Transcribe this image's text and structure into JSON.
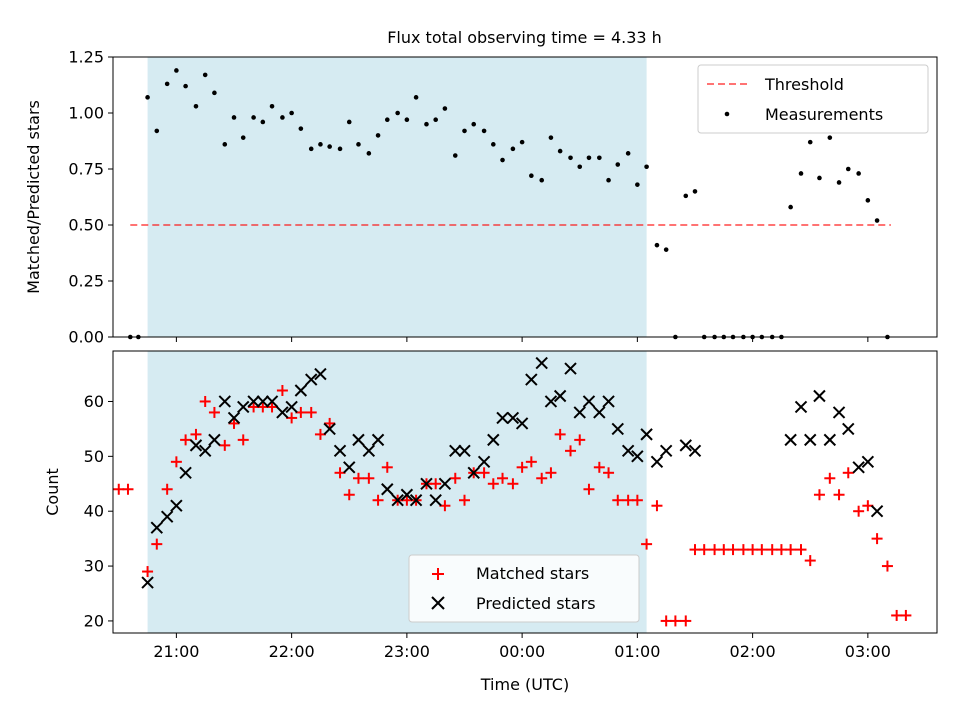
{
  "figure_title": "Flux total observing time = 4.33 h",
  "colors": {
    "shade": "#add8e6",
    "threshold": "#ff0000",
    "matched": "#ff0000",
    "predicted": "#000000",
    "measure": "#000000"
  },
  "chart_data": [
    {
      "type": "scatter",
      "title": "Flux total observing time = 4.33 h",
      "xlabel": "",
      "ylabel": "Matched/Predicted stars",
      "x_axis": "time (UTC, day-relative hours; 24 = 00:00 next day)",
      "xlim": [
        20.45,
        27.6
      ],
      "ylim": [
        0,
        1.25
      ],
      "yticks": [
        0,
        0.25,
        0.5,
        0.75,
        1.0,
        1.25
      ],
      "ytick_labels": [
        "0.00",
        "0.25",
        "0.50",
        "0.75",
        "1.00",
        "1.25"
      ],
      "grid": false,
      "legend_position": "top-right",
      "shaded_region": {
        "x": [
          20.75,
          25.08
        ]
      },
      "threshold": {
        "name": "Threshold",
        "y": 0.5,
        "x": [
          20.6,
          27.2
        ]
      },
      "series": [
        {
          "name": "Measurements",
          "points": [
            [
              20.6,
              0.0
            ],
            [
              20.67,
              0.0
            ],
            [
              20.75,
              1.07
            ],
            [
              20.83,
              0.92
            ],
            [
              20.92,
              1.13
            ],
            [
              21.0,
              1.19
            ],
            [
              21.08,
              1.12
            ],
            [
              21.17,
              1.03
            ],
            [
              21.25,
              1.17
            ],
            [
              21.33,
              1.09
            ],
            [
              21.42,
              0.86
            ],
            [
              21.5,
              0.98
            ],
            [
              21.58,
              0.89
            ],
            [
              21.67,
              0.98
            ],
            [
              21.75,
              0.96
            ],
            [
              21.83,
              1.03
            ],
            [
              21.92,
              0.98
            ],
            [
              22.0,
              1.0
            ],
            [
              22.08,
              0.93
            ],
            [
              22.17,
              0.84
            ],
            [
              22.25,
              0.86
            ],
            [
              22.33,
              0.85
            ],
            [
              22.42,
              0.84
            ],
            [
              22.5,
              0.96
            ],
            [
              22.58,
              0.86
            ],
            [
              22.67,
              0.82
            ],
            [
              22.75,
              0.9
            ],
            [
              22.83,
              0.97
            ],
            [
              22.92,
              1.0
            ],
            [
              23.0,
              0.97
            ],
            [
              23.08,
              1.07
            ],
            [
              23.17,
              0.95
            ],
            [
              23.25,
              0.97
            ],
            [
              23.33,
              1.02
            ],
            [
              23.42,
              0.81
            ],
            [
              23.5,
              0.92
            ],
            [
              23.58,
              0.95
            ],
            [
              23.67,
              0.92
            ],
            [
              23.75,
              0.86
            ],
            [
              23.83,
              0.79
            ],
            [
              23.92,
              0.84
            ],
            [
              24.0,
              0.87
            ],
            [
              24.08,
              0.72
            ],
            [
              24.17,
              0.7
            ],
            [
              24.25,
              0.89
            ],
            [
              24.33,
              0.83
            ],
            [
              24.42,
              0.8
            ],
            [
              24.5,
              0.76
            ],
            [
              24.58,
              0.8
            ],
            [
              24.67,
              0.8
            ],
            [
              24.75,
              0.7
            ],
            [
              24.83,
              0.77
            ],
            [
              24.92,
              0.82
            ],
            [
              25.0,
              0.68
            ],
            [
              25.08,
              0.76
            ],
            [
              25.17,
              0.41
            ],
            [
              25.25,
              0.39
            ],
            [
              25.33,
              0.0
            ],
            [
              25.42,
              0.63
            ],
            [
              25.5,
              0.65
            ],
            [
              25.58,
              0.0
            ],
            [
              25.67,
              0.0
            ],
            [
              25.75,
              0.0
            ],
            [
              25.83,
              0.0
            ],
            [
              25.92,
              0.0
            ],
            [
              26.0,
              0.0
            ],
            [
              26.08,
              0.0
            ],
            [
              26.17,
              0.0
            ],
            [
              26.25,
              0.0
            ],
            [
              26.33,
              0.58
            ],
            [
              26.42,
              0.73
            ],
            [
              26.5,
              0.87
            ],
            [
              26.58,
              0.71
            ],
            [
              26.67,
              0.89
            ],
            [
              26.75,
              0.69
            ],
            [
              26.83,
              0.75
            ],
            [
              26.92,
              0.73
            ],
            [
              27.0,
              0.61
            ],
            [
              27.08,
              0.52
            ],
            [
              27.17,
              0.0
            ]
          ]
        }
      ]
    },
    {
      "type": "scatter",
      "title": "",
      "xlabel": "Time (UTC)",
      "ylabel": "Count",
      "x_axis": "time (UTC, day-relative hours; 24 = 00:00 next day)",
      "xlim": [
        20.45,
        27.6
      ],
      "ylim": [
        17.8,
        69.2
      ],
      "yticks": [
        20,
        30,
        40,
        50,
        60
      ],
      "xticks": [
        21,
        22,
        23,
        24,
        25,
        26,
        27
      ],
      "xtick_labels": [
        "21:00",
        "22:00",
        "23:00",
        "00:00",
        "01:00",
        "02:00",
        "03:00"
      ],
      "grid": false,
      "legend_position": "lower-center",
      "shaded_region": {
        "x": [
          20.75,
          25.08
        ]
      },
      "series": [
        {
          "name": "Matched stars",
          "marker": "+",
          "points": [
            [
              20.5,
              44
            ],
            [
              20.58,
              44
            ],
            [
              20.75,
              29
            ],
            [
              20.83,
              34
            ],
            [
              20.92,
              44
            ],
            [
              21.0,
              49
            ],
            [
              21.08,
              53
            ],
            [
              21.17,
              54
            ],
            [
              21.25,
              60
            ],
            [
              21.33,
              58
            ],
            [
              21.42,
              52
            ],
            [
              21.5,
              56
            ],
            [
              21.58,
              53
            ],
            [
              21.67,
              59
            ],
            [
              21.75,
              59
            ],
            [
              21.83,
              59
            ],
            [
              21.92,
              62
            ],
            [
              22.0,
              57
            ],
            [
              22.08,
              58
            ],
            [
              22.17,
              58
            ],
            [
              22.25,
              54
            ],
            [
              22.33,
              56
            ],
            [
              22.42,
              47
            ],
            [
              22.5,
              43
            ],
            [
              22.58,
              46
            ],
            [
              22.67,
              46
            ],
            [
              22.75,
              42
            ],
            [
              22.83,
              48
            ],
            [
              22.92,
              42
            ],
            [
              23.0,
              42
            ],
            [
              23.08,
              42
            ],
            [
              23.17,
              45
            ],
            [
              23.25,
              45
            ],
            [
              23.33,
              41
            ],
            [
              23.42,
              46
            ],
            [
              23.5,
              42
            ],
            [
              23.58,
              47
            ],
            [
              23.67,
              47
            ],
            [
              23.75,
              45
            ],
            [
              23.83,
              46
            ],
            [
              23.92,
              45
            ],
            [
              24.0,
              48
            ],
            [
              24.08,
              49
            ],
            [
              24.17,
              46
            ],
            [
              24.25,
              47
            ],
            [
              24.33,
              54
            ],
            [
              24.42,
              51
            ],
            [
              24.5,
              53
            ],
            [
              24.58,
              44
            ],
            [
              24.67,
              48
            ],
            [
              24.75,
              47
            ],
            [
              24.83,
              42
            ],
            [
              24.92,
              42
            ],
            [
              25.0,
              42
            ],
            [
              25.08,
              34
            ],
            [
              25.17,
              41
            ],
            [
              25.25,
              20
            ],
            [
              25.33,
              20
            ],
            [
              25.42,
              20
            ],
            [
              25.5,
              33
            ],
            [
              25.58,
              33
            ],
            [
              25.67,
              33
            ],
            [
              25.75,
              33
            ],
            [
              25.83,
              33
            ],
            [
              25.92,
              33
            ],
            [
              26.0,
              33
            ],
            [
              26.08,
              33
            ],
            [
              26.17,
              33
            ],
            [
              26.25,
              33
            ],
            [
              26.33,
              33
            ],
            [
              26.42,
              33
            ],
            [
              26.5,
              31
            ],
            [
              26.58,
              43
            ],
            [
              26.67,
              46
            ],
            [
              26.75,
              43
            ],
            [
              26.83,
              47
            ],
            [
              26.92,
              40
            ],
            [
              27.0,
              41
            ],
            [
              27.08,
              35
            ],
            [
              27.17,
              30
            ],
            [
              27.25,
              21
            ],
            [
              27.33,
              21
            ]
          ]
        },
        {
          "name": "Predicted stars",
          "marker": "x",
          "points": [
            [
              20.75,
              27
            ],
            [
              20.83,
              37
            ],
            [
              20.92,
              39
            ],
            [
              21.0,
              41
            ],
            [
              21.08,
              47
            ],
            [
              21.17,
              52
            ],
            [
              21.25,
              51
            ],
            [
              21.33,
              53
            ],
            [
              21.42,
              60
            ],
            [
              21.5,
              57
            ],
            [
              21.58,
              59
            ],
            [
              21.67,
              60
            ],
            [
              21.75,
              60
            ],
            [
              21.83,
              60
            ],
            [
              21.92,
              58
            ],
            [
              22.0,
              59
            ],
            [
              22.08,
              62
            ],
            [
              22.17,
              64
            ],
            [
              22.25,
              65
            ],
            [
              22.33,
              55
            ],
            [
              22.42,
              51
            ],
            [
              22.5,
              48
            ],
            [
              22.58,
              53
            ],
            [
              22.67,
              51
            ],
            [
              22.75,
              53
            ],
            [
              22.83,
              44
            ],
            [
              22.92,
              42
            ],
            [
              23.0,
              43
            ],
            [
              23.08,
              42
            ],
            [
              23.17,
              45
            ],
            [
              23.25,
              42
            ],
            [
              23.33,
              45
            ],
            [
              23.42,
              51
            ],
            [
              23.5,
              51
            ],
            [
              23.58,
              47
            ],
            [
              23.67,
              49
            ],
            [
              23.75,
              53
            ],
            [
              23.83,
              57
            ],
            [
              23.92,
              57
            ],
            [
              24.0,
              56
            ],
            [
              24.08,
              64
            ],
            [
              24.17,
              67
            ],
            [
              24.25,
              60
            ],
            [
              24.33,
              61
            ],
            [
              24.42,
              66
            ],
            [
              24.5,
              58
            ],
            [
              24.58,
              60
            ],
            [
              24.67,
              58
            ],
            [
              24.75,
              60
            ],
            [
              24.83,
              55
            ],
            [
              24.92,
              51
            ],
            [
              25.0,
              50
            ],
            [
              25.08,
              54
            ],
            [
              25.17,
              49
            ],
            [
              25.25,
              51
            ],
            [
              25.42,
              52
            ],
            [
              25.5,
              51
            ],
            [
              26.33,
              53
            ],
            [
              26.42,
              59
            ],
            [
              26.5,
              53
            ],
            [
              26.58,
              61
            ],
            [
              26.67,
              53
            ],
            [
              26.75,
              58
            ],
            [
              26.83,
              55
            ],
            [
              26.92,
              48
            ],
            [
              27.0,
              49
            ],
            [
              27.08,
              40
            ]
          ]
        }
      ]
    }
  ]
}
